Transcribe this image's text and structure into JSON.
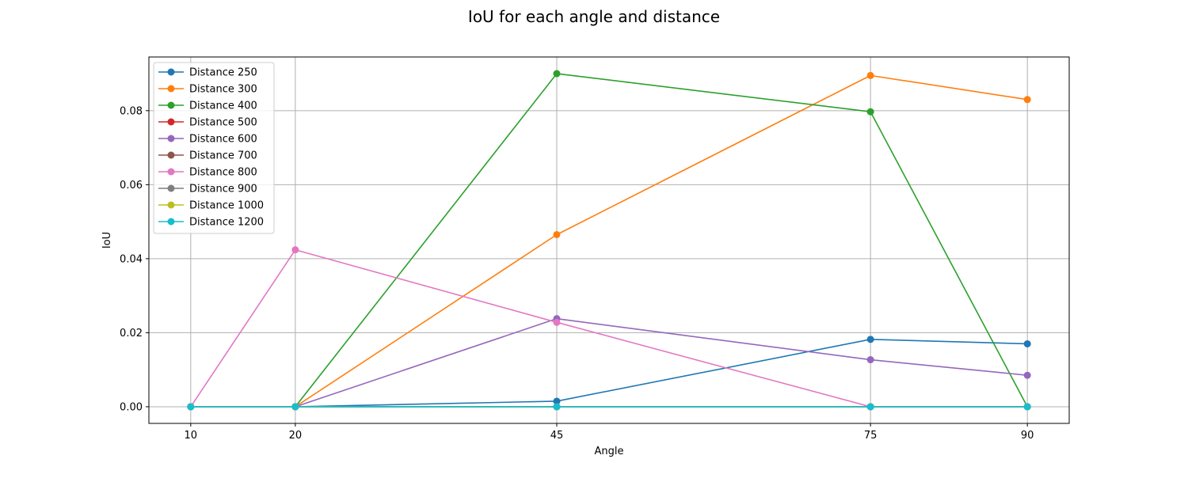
{
  "chart_data": {
    "type": "line",
    "title": "IoU for each angle and distance",
    "xlabel": "Angle",
    "ylabel": "IoU",
    "x": [
      10,
      20,
      45,
      75,
      90
    ],
    "xticks": [
      "10",
      "20",
      "45",
      "75",
      "90"
    ],
    "xlim": [
      6.0,
      94.0
    ],
    "ylim": [
      -0.0045,
      0.0945
    ],
    "yticks": [
      0.0,
      0.02,
      0.04,
      0.06,
      0.08
    ],
    "ytick_labels": [
      "0.00",
      "0.02",
      "0.04",
      "0.06",
      "0.08"
    ],
    "grid": true,
    "legend_position": "upper-left",
    "series": [
      {
        "name": "Distance 250",
        "color": "#1f77b4",
        "values": [
          0,
          0,
          0.0015,
          0.0182,
          0.017
        ]
      },
      {
        "name": "Distance 300",
        "color": "#ff7f0e",
        "values": [
          0,
          0,
          0.0465,
          0.0895,
          0.083
        ]
      },
      {
        "name": "Distance 400",
        "color": "#2ca02c",
        "values": [
          0,
          0,
          0.09,
          0.0797,
          0
        ]
      },
      {
        "name": "Distance 500",
        "color": "#d62728",
        "values": [
          0,
          0,
          0,
          0,
          0
        ]
      },
      {
        "name": "Distance 600",
        "color": "#9467bd",
        "values": [
          0,
          0,
          0.0238,
          0.0127,
          0.0085
        ]
      },
      {
        "name": "Distance 700",
        "color": "#8c564b",
        "values": [
          0,
          0,
          0,
          0,
          0
        ]
      },
      {
        "name": "Distance 800",
        "color": "#e377c2",
        "values": [
          0,
          0.0424,
          0.0228,
          0,
          0
        ]
      },
      {
        "name": "Distance 900",
        "color": "#7f7f7f",
        "values": [
          0,
          0,
          0,
          0,
          0
        ]
      },
      {
        "name": "Distance 1000",
        "color": "#bcbd22",
        "values": [
          0,
          0,
          0,
          0,
          0
        ]
      },
      {
        "name": "Distance 1200",
        "color": "#17becf",
        "values": [
          0,
          0,
          0,
          0,
          0
        ]
      }
    ]
  }
}
